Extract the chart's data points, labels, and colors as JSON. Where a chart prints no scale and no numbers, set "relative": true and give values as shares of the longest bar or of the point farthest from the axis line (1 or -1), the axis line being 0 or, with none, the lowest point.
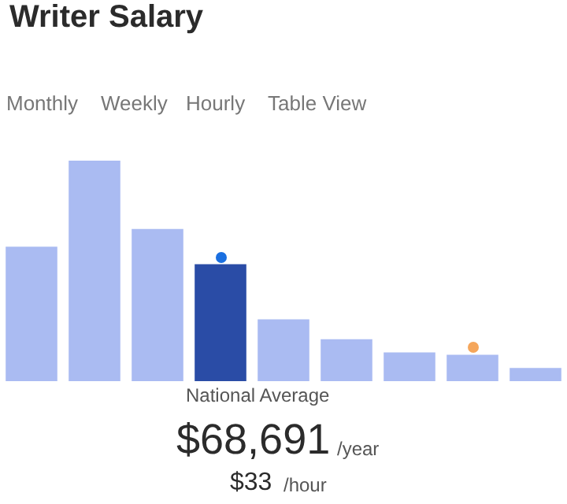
{
  "chart_data": {
    "type": "bar",
    "title": "Writer Salary",
    "relative": true,
    "categories": [
      null,
      null,
      null,
      null,
      null,
      null,
      null,
      null,
      null
    ],
    "values": [
      0.61,
      1,
      0.69,
      0.53,
      0.28,
      0.19,
      0.13,
      0.12,
      0.06
    ],
    "colors": [
      "#aabbf2",
      "#aabbf2",
      "#aabbf2",
      "#2a4ca6",
      "#aabbf2",
      "#aabbf2",
      "#aabbf2",
      "#aabbf2",
      "#aabbf2"
    ],
    "annotations": [
      "Monthly",
      "Weekly",
      "Hourly",
      "Table View",
      "National Average",
      "$68,691",
      "/year",
      "$33",
      "/hour"
    ]
  }
}
